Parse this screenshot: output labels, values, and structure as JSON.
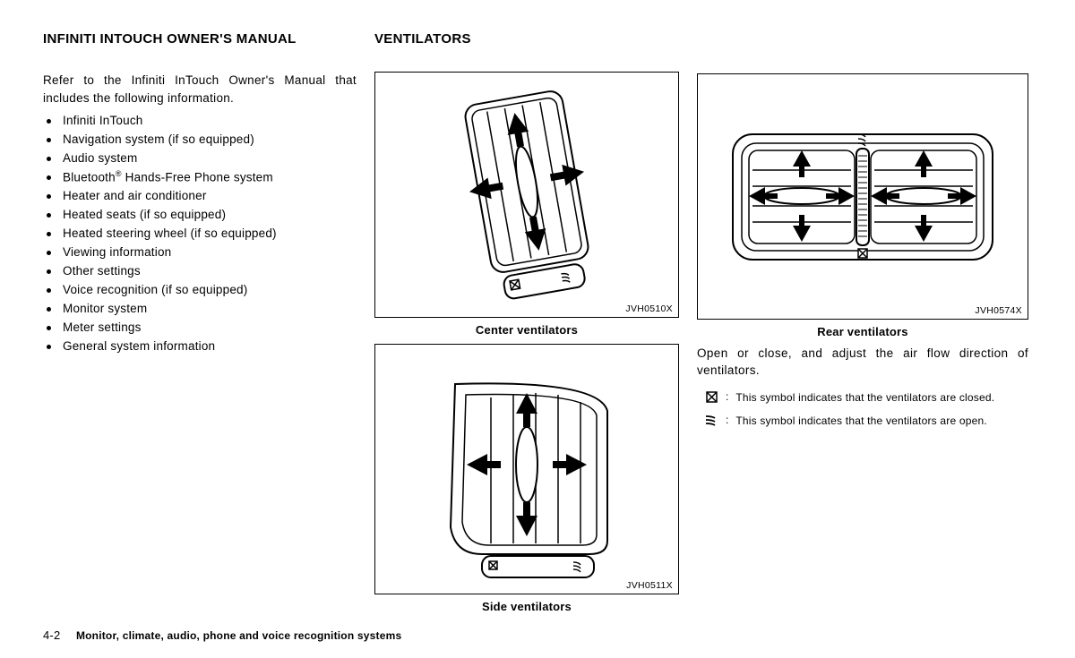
{
  "left": {
    "title": "INFINITI INTOUCH OWNER'S MANUAL",
    "intro": "Refer to the Infiniti InTouch Owner's Manual that includes the following information.",
    "items": [
      "Infiniti InTouch",
      "Navigation system (if so equipped)",
      "Audio system",
      "Bluetooth® Hands-Free Phone system",
      "Heater and air conditioner",
      "Heated seats (if so equipped)",
      "Heated steering wheel (if so equipped)",
      "Viewing information",
      "Other settings",
      "Voice recognition (if so equipped)",
      "Monitor system",
      "Meter settings",
      "General system information"
    ]
  },
  "center": {
    "title": "VENTILATORS",
    "figA_code": "JVH0510X",
    "figA_caption": "Center ventilators",
    "figB_code": "JVH0511X",
    "figB_caption": "Side ventilators"
  },
  "right": {
    "figC_code": "JVH0574X",
    "figC_caption": "Rear ventilators",
    "body": "Open or close, and adjust the air flow direction of ventilators.",
    "legend_closed": "This symbol indicates that the ventilators are closed.",
    "legend_open": "This symbol indicates that the ventilators are open."
  },
  "footer": {
    "page": "4-2",
    "chapter": "Monitor, climate, audio, phone and voice recognition systems"
  },
  "style": {
    "page_bg": "#ffffff",
    "text_color": "#000000",
    "border_color": "#000000",
    "body_font_size_pt": 10,
    "title_font_size_pt": 11,
    "caption_font_size_pt": 10,
    "figcode_font_size_pt": 8
  }
}
